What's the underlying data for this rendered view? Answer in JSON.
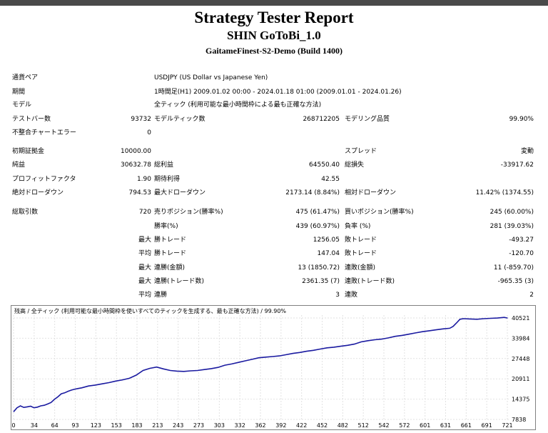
{
  "report": {
    "title": "Strategy Tester Report",
    "expert": "SHIN GoToBi_1.0",
    "server": "GaitameFinest-S2-Demo (Build 1400)"
  },
  "info": {
    "symbol_label": "通貨ペア",
    "symbol_value": "USDJPY (US Dollar vs Japanese Yen)",
    "period_label": "期間",
    "period_value": "1時間足(H1) 2009.01.02 00:00 - 2024.01.18 01:00 (2009.01.01 - 2024.01.26)",
    "model_label": "モデル",
    "model_value": "全ティック (利用可能な最小時間枠による最も正確な方法)",
    "bars_label": "テストバー数",
    "bars_value": "93732",
    "ticks_label": "モデルティック数",
    "ticks_value": "268712205",
    "quality_label": "モデリング品質",
    "quality_value": "99.90%",
    "errors_label": "不整合チャートエラー",
    "errors_value": "0"
  },
  "stats": {
    "deposit_label": "初期証拠金",
    "deposit_value": "10000.00",
    "spread_label": "スプレッド",
    "spread_value": "変動",
    "net_label": "純益",
    "net_value": "30632.78",
    "gross_profit_label": "総利益",
    "gross_profit_value": "64550.40",
    "gross_loss_label": "総損失",
    "gross_loss_value": "-33917.62",
    "pf_label": "プロフィットファクタ",
    "pf_value": "1.90",
    "payoff_label": "期待利得",
    "payoff_value": "42.55",
    "abs_dd_label": "絶対ドローダウン",
    "abs_dd_value": "794.53",
    "max_dd_label": "最大ドローダウン",
    "max_dd_value": "2173.14 (8.84%)",
    "rel_dd_label": "相対ドローダウン",
    "rel_dd_value": "11.42% (1374.55)",
    "trades_label": "総取引数",
    "trades_value": "720",
    "short_label": "売りポジション(勝率%)",
    "short_value": "475 (61.47%)",
    "long_label": "買いポジション(勝率%)",
    "long_value": "245 (60.00%)",
    "win_label": "勝率(%)",
    "win_value": "439 (60.97%)",
    "loss_label": "負率 (%)",
    "loss_value": "281 (39.03%)",
    "max_label": "最大",
    "avg_label": "平均",
    "largest_win_label": "勝トレード",
    "largest_win_value": "1256.05",
    "largest_loss_label": "敗トレード",
    "largest_loss_value": "-493.27",
    "avg_win_label": "勝トレード",
    "avg_win_value": "147.04",
    "avg_loss_label": "敗トレード",
    "avg_loss_value": "-120.70",
    "cons_wins_label": "連勝(金額)",
    "cons_wins_value": "13 (1850.72)",
    "cons_losses_label": "連敗(金額)",
    "cons_losses_value": "11 (-859.70)",
    "cons_profit_label": "連勝(トレード数)",
    "cons_profit_value": "2361.35 (7)",
    "cons_loss_label": "連敗(トレード数)",
    "cons_loss_value": "-965.35 (3)",
    "avg_cons_wins_label": "連勝",
    "avg_cons_wins_value": "3",
    "avg_cons_losses_label": "連敗",
    "avg_cons_losses_value": "2"
  },
  "chart_title": "残高 / 全ティック (利用可能な最小時間枠を使いすべてのティックを生成する、最も正確な方法) / 99.90%",
  "chart_data": {
    "type": "line",
    "title": "残高 / 全ティック (利用可能な最小時間枠を使いすべてのティックを生成する、最も正確な方法) / 99.90%",
    "xlabel": "",
    "ylabel": "",
    "x_ticks": [
      "0",
      "34",
      "64",
      "93",
      "123",
      "153",
      "183",
      "213",
      "243",
      "273",
      "303",
      "332",
      "362",
      "392",
      "422",
      "452",
      "482",
      "512",
      "542",
      "572",
      "601",
      "631",
      "661",
      "691",
      "721"
    ],
    "y_ticks": [
      "40521",
      "33984",
      "27448",
      "20911",
      "14375",
      "7838"
    ],
    "ylim": [
      7838,
      43000
    ],
    "xlim": [
      0,
      735
    ],
    "grid": true,
    "color": "#1a1aa0",
    "series": [
      {
        "x": [
          0,
          5,
          10,
          15,
          20,
          25,
          30,
          35,
          40,
          45,
          50,
          55,
          60,
          65,
          70,
          75,
          80,
          85,
          90,
          95,
          100,
          110,
          120,
          130,
          140,
          150,
          160,
          170,
          180,
          190,
          200,
          210,
          220,
          230,
          240,
          250,
          260,
          270,
          280,
          290,
          300,
          310,
          320,
          330,
          340,
          350,
          360,
          370,
          380,
          390,
          400,
          410,
          420,
          430,
          440,
          450,
          460,
          470,
          480,
          490,
          500,
          510,
          520,
          530,
          540,
          550,
          560,
          570,
          580,
          590,
          600,
          610,
          620,
          630,
          640,
          645,
          650,
          655,
          660,
          670,
          680,
          690,
          700,
          710,
          720,
          725
        ],
        "y": [
          10300,
          11600,
          12200,
          11700,
          11900,
          12100,
          11600,
          11800,
          12200,
          12400,
          12800,
          13300,
          14300,
          15100,
          16100,
          16400,
          16900,
          17300,
          17600,
          17800,
          18000,
          18600,
          18900,
          19300,
          19700,
          20200,
          20600,
          21100,
          22100,
          23600,
          24300,
          24700,
          24100,
          23600,
          23400,
          23300,
          23500,
          23600,
          23900,
          24200,
          24600,
          25300,
          25700,
          26200,
          26700,
          27200,
          27700,
          27900,
          28100,
          28300,
          28700,
          29100,
          29400,
          29800,
          30100,
          30500,
          30900,
          31100,
          31400,
          31700,
          32100,
          32800,
          33200,
          33500,
          33700,
          34100,
          34600,
          34900,
          35300,
          35700,
          36100,
          36400,
          36700,
          37000,
          37200,
          37800,
          38900,
          40100,
          40300,
          40200,
          40100,
          40300,
          40400,
          40500,
          40700,
          40500
        ]
      }
    ]
  }
}
